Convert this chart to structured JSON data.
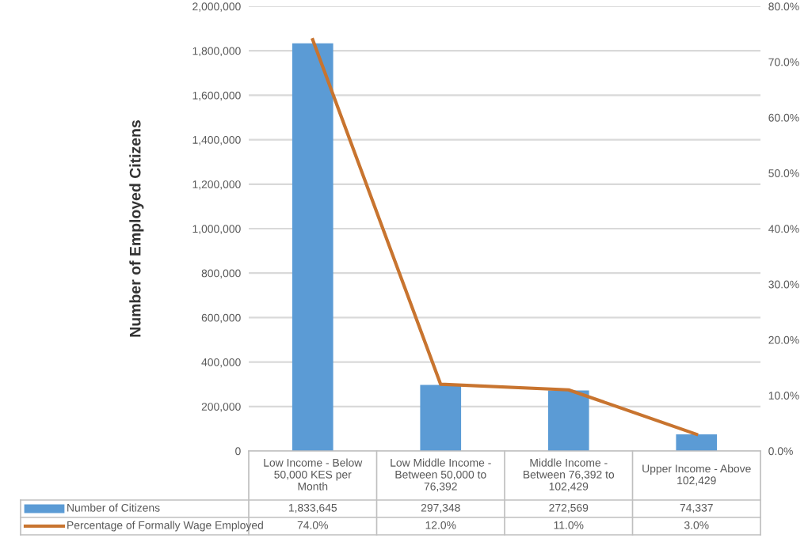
{
  "chart_data": {
    "type": "bar",
    "categories": [
      "Low Income - Below 50,000 KES per Month",
      "Low Middle Income - Between 50,000 to 76,392",
      "Middle Income - Between 76,392 to 102,429",
      "Upper Income - Above 102,429"
    ],
    "series": [
      {
        "name": "Number of Citizens",
        "color": "#5b9bd5",
        "values": [
          1833645,
          297348,
          272569,
          74337
        ],
        "value_labels": [
          "1,833,645",
          "297,348",
          "272,569",
          "74,337"
        ]
      },
      {
        "name": "Percentage of Formally Wage Employed",
        "type": "line",
        "axis": "y2",
        "color": "#c8742f",
        "values": [
          74.0,
          12.0,
          11.0,
          3.0
        ],
        "value_labels": [
          "74.0%",
          "12.0%",
          "11.0%",
          "3.0%"
        ]
      }
    ],
    "ylabel": "Number of Employed Citizens",
    "ylim": [
      0,
      2000000
    ],
    "yticks": [
      0,
      {
        "value": 200000,
        "label": "200,000"
      },
      {
        "value": 400000,
        "label": "400,000"
      },
      {
        "value": 600000,
        "label": "600,000"
      },
      {
        "value": 800000,
        "label": "800,000"
      },
      {
        "value": 1000000,
        "label": "1,000,000"
      },
      {
        "value": 1200000,
        "label": "1,200,000"
      },
      {
        "value": 1400000,
        "label": "1,400,000"
      },
      {
        "value": 1600000,
        "label": "1,600,000"
      },
      {
        "value": 1800000,
        "label": "1,800,000"
      },
      {
        "value": 2000000,
        "label": "2,000,000"
      }
    ],
    "y2lim": [
      0,
      80
    ],
    "y2ticks": [
      {
        "value": 0,
        "label": "0.0%"
      },
      {
        "value": 10,
        "label": "10.0%"
      },
      {
        "value": 20,
        "label": "20.0%"
      },
      {
        "value": 30,
        "label": "30.0%"
      },
      {
        "value": 40,
        "label": "40.0%"
      },
      {
        "value": 50,
        "label": "50.0%"
      },
      {
        "value": 60,
        "label": "60.0%"
      },
      {
        "value": 70,
        "label": "70.0%"
      },
      {
        "value": 80,
        "label": "80.0%"
      }
    ],
    "grid": "y",
    "legend": "bottom",
    "marker": "none",
    "line_style": "solid"
  }
}
